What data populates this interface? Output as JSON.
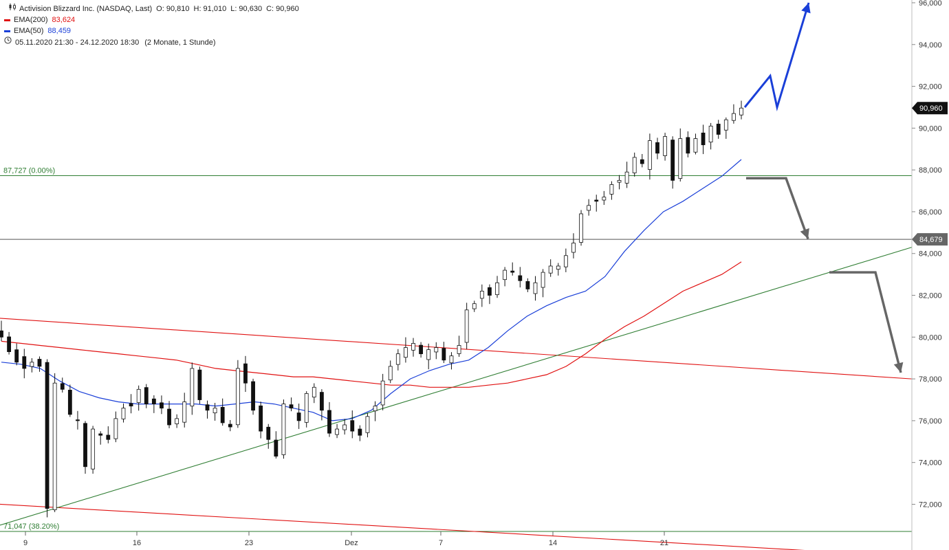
{
  "header": {
    "icon": "candlestick-icon",
    "title": "Activision Blizzard Inc. (NASDAQ, Last)",
    "ohlc": {
      "open": "O: 90,810",
      "high": "H: 91,010",
      "low": "L: 90,630",
      "close": "C: 90,960"
    },
    "ema200": {
      "label": "EMA(200)",
      "value": "83,624",
      "color": "#e01010"
    },
    "ema50": {
      "label": "EMA(50)",
      "value": "88,459",
      "color": "#1a3fd8"
    },
    "range_icon": "clock-icon",
    "range": "05.11.2020 21:30 - 24.12.2020 18:30",
    "range_note": "(2 Monate, 1 Stunde)"
  },
  "chart_data": {
    "type": "candlestick",
    "ylim": [
      70.7,
      96.0
    ],
    "y_ticks": [
      72,
      74,
      76,
      78,
      80,
      82,
      84,
      86,
      88,
      90,
      92,
      94,
      96
    ],
    "y_tick_labels": [
      "72,000",
      "74,000",
      "76,000",
      "78,000",
      "80,000",
      "82,000",
      "84,000",
      "86,000",
      "88,000",
      "90,000",
      "92,000",
      "94,000",
      "96,000"
    ],
    "x_tick_labels": [
      "9",
      "16",
      "23",
      "Dez",
      "7",
      "14",
      "21"
    ],
    "x_axis_dates": [
      "2020-11-09",
      "2020-11-16",
      "2020-11-23",
      "2020-12-01",
      "2020-12-07",
      "2020-12-14",
      "2020-12-21"
    ],
    "last_price": {
      "value": 90.96,
      "label": "90,960"
    },
    "level_price": {
      "value": 84.679,
      "label": "84,679"
    },
    "fib_levels": [
      {
        "value": 87.727,
        "label": "87,727 (0.00%)"
      },
      {
        "value": 71.047,
        "label": "71,047 (38.20%)"
      }
    ],
    "price_path": [
      80.0,
      79.3,
      78.8,
      78.5,
      78.8,
      78.6,
      71.8,
      77.8,
      77.5,
      76.3,
      76.0,
      73.8,
      75.6,
      75.3,
      75.1,
      76.1,
      76.6,
      76.7,
      77.5,
      76.8,
      76.8,
      76.6,
      75.8,
      76.1,
      76.9,
      78.5,
      77.0,
      76.5,
      76.6,
      75.9,
      75.7,
      78.5,
      77.8,
      76.5,
      75.5,
      75.1,
      74.3,
      76.8,
      76.6,
      76.0,
      77.3,
      77.6,
      76.5,
      75.4,
      75.6,
      75.8,
      75.5,
      75.3,
      76.2,
      76.7,
      77.9,
      78.6,
      79.2,
      79.5,
      79.7,
      79.2,
      79.4,
      79.5,
      78.9,
      79.1,
      79.6,
      81.3,
      81.6,
      82.2,
      82.0,
      82.6,
      83.2,
      83.1,
      82.7,
      82.3,
      82.6,
      83.1,
      83.4,
      83.4,
      83.9,
      84.5,
      85.9,
      86.3,
      86.5,
      86.7,
      87.3,
      87.5,
      87.9,
      88.6,
      88.3,
      89.4,
      88.8,
      89.6,
      87.5,
      89.5,
      88.8,
      89.5,
      89.2,
      90.1,
      89.7,
      90.4,
      90.7,
      90.96
    ],
    "series": [
      {
        "name": "EMA(200)",
        "color": "#e01010",
        "values": [
          79.8,
          79.7,
          79.6,
          79.5,
          79.4,
          79.3,
          79.2,
          79.1,
          79.0,
          78.9,
          78.7,
          78.5,
          78.4,
          78.3,
          78.2,
          78.1,
          78.1,
          78.0,
          77.9,
          77.8,
          77.7,
          77.7,
          77.6,
          77.6,
          77.6,
          77.7,
          77.8,
          78.0,
          78.2,
          78.6,
          79.2,
          79.9,
          80.5,
          81.0,
          81.6,
          82.2,
          82.6,
          83.0,
          83.6
        ]
      },
      {
        "name": "EMA(50)",
        "color": "#1a3fd8",
        "values": [
          78.8,
          78.7,
          78.5,
          77.9,
          77.4,
          77.1,
          76.9,
          76.8,
          76.8,
          76.8,
          76.8,
          76.7,
          76.8,
          76.9,
          76.8,
          76.6,
          76.4,
          76.0,
          76.1,
          76.5,
          77.3,
          78.0,
          78.4,
          78.7,
          78.9,
          79.5,
          80.3,
          81.0,
          81.5,
          81.9,
          82.2,
          82.9,
          84.1,
          85.1,
          86.0,
          86.5,
          87.1,
          87.7,
          88.5
        ]
      }
    ],
    "trendlines": [
      {
        "name": "falling-upper",
        "color": "#e01010",
        "from": 80.9,
        "to": 78.0
      },
      {
        "name": "falling-lower",
        "color": "#e01010",
        "from": 72.0,
        "to": 69.5
      },
      {
        "name": "rising-support",
        "color": "#2e7d32",
        "from": 71.0,
        "to": 84.3
      }
    ],
    "scenario_arrows": [
      {
        "name": "bullish-scenario",
        "color": "#1a3fd8",
        "points": [
          91.0,
          92.5,
          91.0,
          96.0
        ]
      },
      {
        "name": "neutral-scenario",
        "color": "#666666",
        "points": [
          87.6,
          87.6,
          84.7
        ]
      },
      {
        "name": "bearish-scenario",
        "color": "#666666",
        "points": [
          83.1,
          83.1,
          78.3
        ]
      }
    ]
  }
}
